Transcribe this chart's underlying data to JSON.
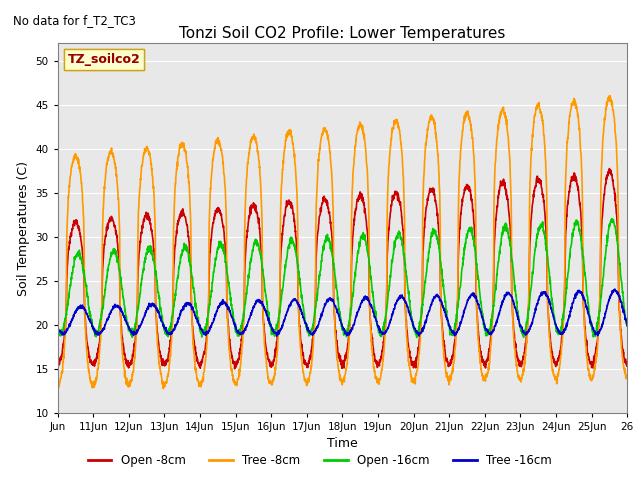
{
  "title": "Tonzi Soil CO2 Profile: Lower Temperatures",
  "subtitle": "No data for f_T2_TC3",
  "xlabel": "Time",
  "ylabel": "Soil Temperatures (C)",
  "ylim": [
    10,
    52
  ],
  "yticks": [
    10,
    15,
    20,
    25,
    30,
    35,
    40,
    45,
    50
  ],
  "legend_label": "TZ_soilco2",
  "series_labels": [
    "Open -8cm",
    "Tree -8cm",
    "Open -16cm",
    "Tree -16cm"
  ],
  "series_colors": [
    "#cc0000",
    "#ff9900",
    "#00cc00",
    "#0000cc"
  ],
  "line_width": 1.2,
  "bg_color": "#e8e8e8",
  "n_days": 16,
  "start_day": 10
}
